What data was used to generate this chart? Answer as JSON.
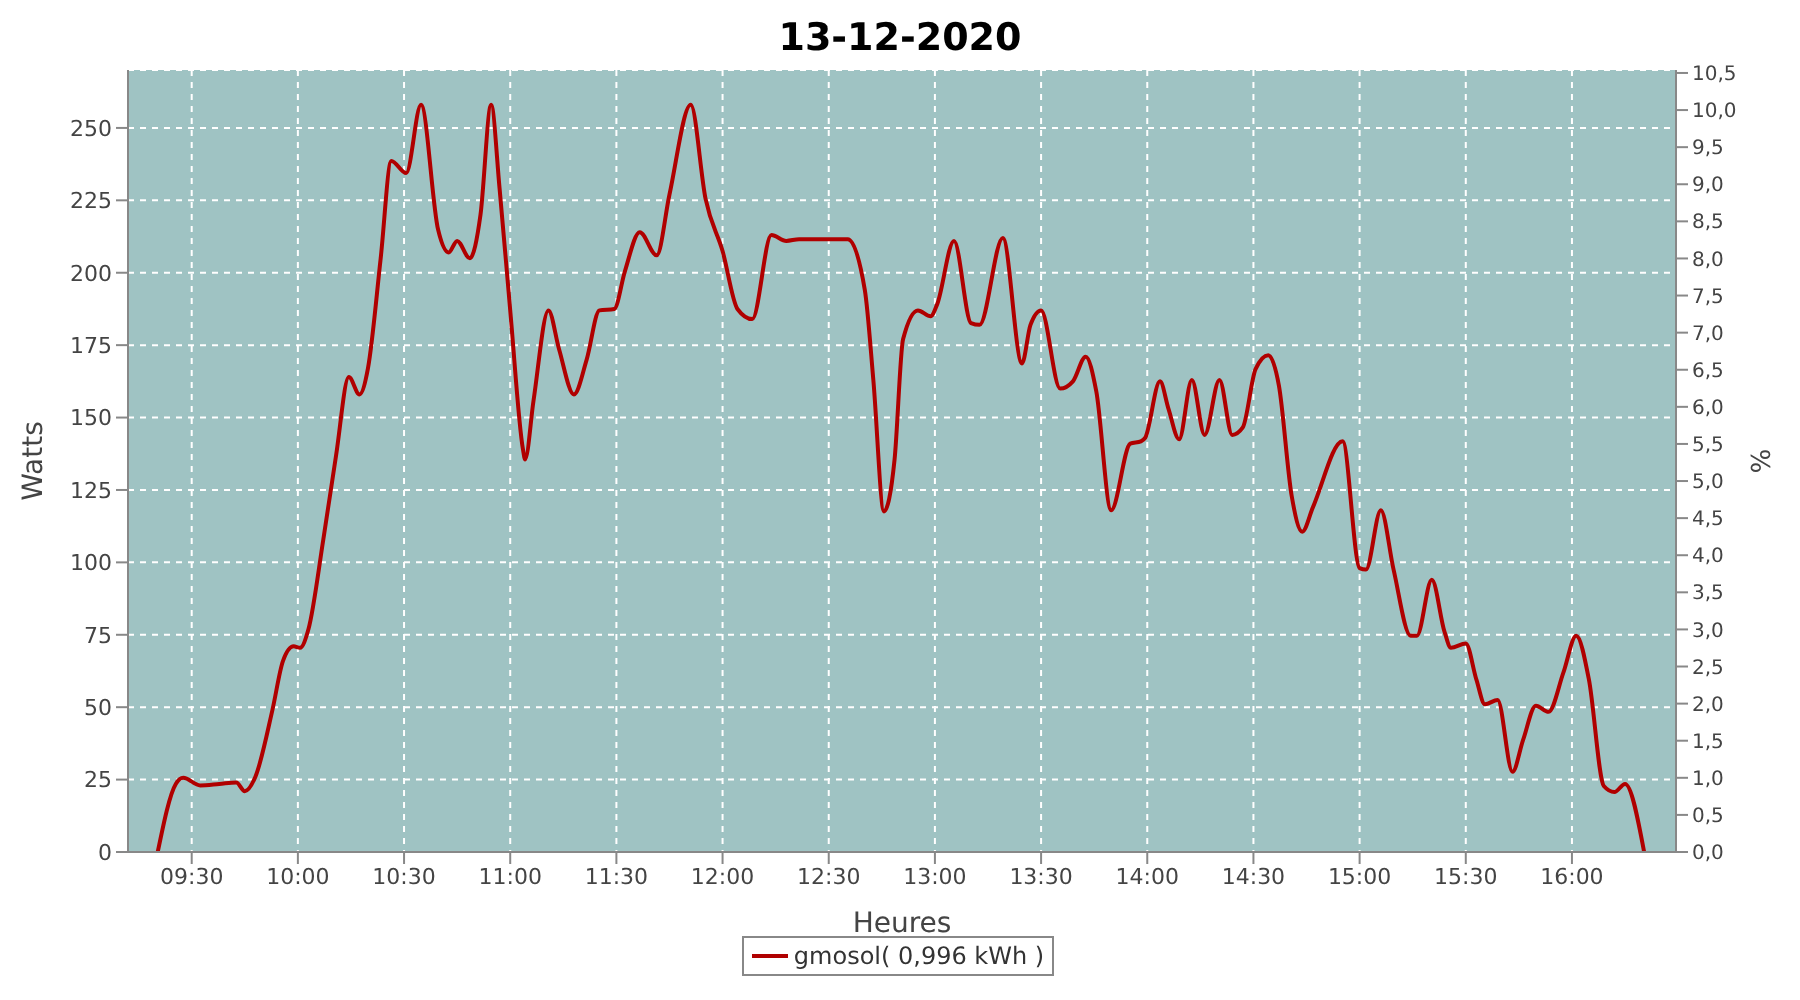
{
  "chart_data": {
    "type": "line",
    "title": "13-12-2020",
    "xlabel": "Heures",
    "ylabel": "Watts",
    "y2label": "%",
    "xlim": [
      9.2,
      16.49
    ],
    "ylim": [
      0,
      270
    ],
    "y2lim": [
      0,
      10.54
    ],
    "xticks": [
      {
        "value": 9.5,
        "label": "09:30"
      },
      {
        "value": 10,
        "label": "10:00"
      },
      {
        "value": 10.5,
        "label": "10:30"
      },
      {
        "value": 11,
        "label": "11:00"
      },
      {
        "value": 11.5,
        "label": "11:30"
      },
      {
        "value": 12,
        "label": "12:00"
      },
      {
        "value": 12.5,
        "label": "12:30"
      },
      {
        "value": 13,
        "label": "13:00"
      },
      {
        "value": 13.5,
        "label": "13:30"
      },
      {
        "value": 14,
        "label": "14:00"
      },
      {
        "value": 14.5,
        "label": "14:30"
      },
      {
        "value": 15,
        "label": "15:00"
      },
      {
        "value": 15.5,
        "label": "15:30"
      },
      {
        "value": 16,
        "label": "16:00"
      }
    ],
    "yticks": [
      0,
      25,
      50,
      75,
      100,
      125,
      150,
      175,
      200,
      225,
      250
    ],
    "y2ticks": [
      {
        "value": 0,
        "label": "0,0"
      },
      {
        "value": 0.5,
        "label": "0,5"
      },
      {
        "value": 1,
        "label": "1,0"
      },
      {
        "value": 1.5,
        "label": "1,5"
      },
      {
        "value": 2,
        "label": "2,0"
      },
      {
        "value": 2.5,
        "label": "2,5"
      },
      {
        "value": 3,
        "label": "3,0"
      },
      {
        "value": 3.5,
        "label": "3,5"
      },
      {
        "value": 4,
        "label": "4,0"
      },
      {
        "value": 4.5,
        "label": "4,5"
      },
      {
        "value": 5,
        "label": "5,0"
      },
      {
        "value": 5.5,
        "label": "5,5"
      },
      {
        "value": 6,
        "label": "6,0"
      },
      {
        "value": 6.5,
        "label": "6,5"
      },
      {
        "value": 7,
        "label": "7,0"
      },
      {
        "value": 7.5,
        "label": "7,5"
      },
      {
        "value": 8,
        "label": "8,0"
      },
      {
        "value": 8.5,
        "label": "8,5"
      },
      {
        "value": 9,
        "label": "9,0"
      },
      {
        "value": 9.5,
        "label": "9,5"
      },
      {
        "value": 10,
        "label": "10,0"
      },
      {
        "value": 10.5,
        "label": "10,5"
      }
    ],
    "grid": true,
    "legend": "bottom",
    "marker": "none",
    "line_style": "solid",
    "series": [
      {
        "name": "gmosol( 0,996 kWh )",
        "color": "#b00000",
        "x": [
          9.34,
          9.425,
          9.46,
          9.54,
          9.63,
          9.71,
          9.75,
          9.8,
          9.88,
          9.93,
          9.98,
          10.01,
          10.05,
          10.12,
          10.18,
          10.24,
          10.29,
          10.33,
          10.39,
          10.44,
          10.51,
          10.58,
          10.66,
          10.71,
          10.75,
          10.81,
          10.86,
          10.91,
          10.95,
          11.0,
          11.06,
          11.07,
          11.11,
          11.18,
          11.23,
          11.3,
          11.36,
          11.42,
          11.49,
          11.54,
          11.61,
          11.69,
          11.75,
          11.85,
          11.92,
          12.0,
          12.07,
          12.14,
          12.23,
          12.3,
          12.36,
          12.59,
          12.67,
          12.71,
          12.76,
          12.81,
          12.85,
          12.92,
          12.98,
          13.01,
          13.09,
          13.17,
          13.21,
          13.32,
          13.41,
          13.45,
          13.5,
          13.59,
          13.65,
          13.71,
          13.76,
          13.83,
          13.92,
          13.97,
          13.99,
          14.06,
          14.1,
          14.15,
          14.21,
          14.27,
          14.34,
          14.4,
          14.45,
          14.51,
          14.57,
          14.62,
          14.68,
          14.73,
          14.78,
          14.92,
          15.0,
          15.03,
          15.1,
          15.16,
          15.24,
          15.27,
          15.34,
          15.4,
          15.43,
          15.5,
          15.55,
          15.59,
          15.65,
          15.72,
          15.77,
          15.83,
          15.89,
          15.96,
          16.02,
          16.08,
          16.15,
          16.2,
          16.25,
          16.34
        ],
        "values": [
          0,
          23.5,
          25.6,
          23,
          23.5,
          24,
          21,
          26,
          49,
          66,
          71,
          70.5,
          77,
          108,
          137,
          164,
          158,
          167,
          205,
          238.6,
          234.4,
          258,
          215,
          207,
          211,
          205,
          220,
          258,
          229,
          187,
          139,
          135.5,
          156,
          187,
          173.6,
          158,
          170,
          187,
          187.5,
          200.5,
          214,
          206,
          227,
          258,
          225.5,
          207.5,
          187.5,
          184,
          213,
          211,
          211.6,
          211.6,
          194,
          163,
          117.6,
          135.5,
          177,
          187,
          185,
          189,
          211,
          182.6,
          182,
          212,
          168.7,
          182,
          187,
          160,
          162.5,
          171,
          159,
          118,
          141,
          141.8,
          143,
          162.5,
          153,
          142.5,
          163,
          144,
          163,
          144,
          146.6,
          166.7,
          171.5,
          161,
          123,
          110.6,
          119,
          141.8,
          98,
          97.5,
          118,
          97.5,
          74.7,
          74.7,
          94,
          76,
          70.5,
          72,
          59.5,
          51,
          52.5,
          27.7,
          38.7,
          50.5,
          48.4,
          62,
          74.7,
          59.5,
          22.8,
          20.7,
          23.5,
          0
        ]
      }
    ]
  }
}
